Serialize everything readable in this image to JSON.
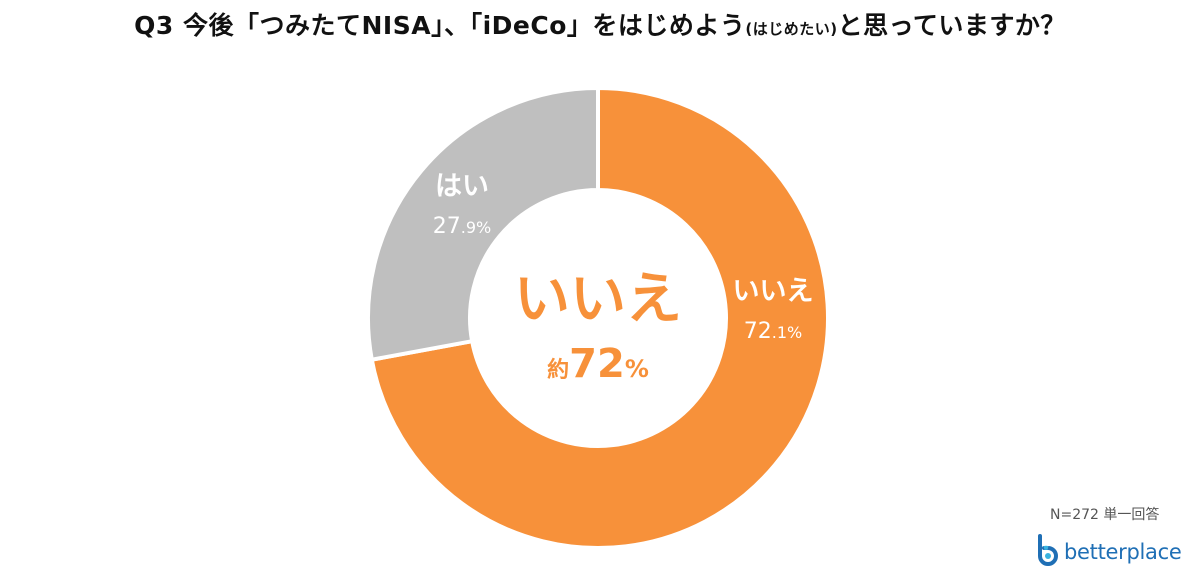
{
  "title": {
    "main_before": "Q3 今後「つみたてNISA」、「iDeCo」をはじめよう",
    "paren": "(はじめたい)",
    "main_after": "と思っていますか？"
  },
  "chart_data": {
    "type": "pie",
    "donut": true,
    "start_angle_deg": 0,
    "direction": "clockwise",
    "slices": [
      {
        "label": "いいえ",
        "value": 72.1,
        "value_text": "72.1",
        "color": "#f7913a"
      },
      {
        "label": "はい",
        "value": 27.9,
        "value_text": "27.9",
        "color": "#bfbfbf"
      }
    ],
    "unit": "%",
    "center": {
      "label": "いいえ",
      "prefix": "約",
      "value": "72",
      "unit": "%"
    }
  },
  "note": "N=272 単一回答",
  "brand": {
    "name": "betterplace",
    "color": "#1f6fb5"
  }
}
